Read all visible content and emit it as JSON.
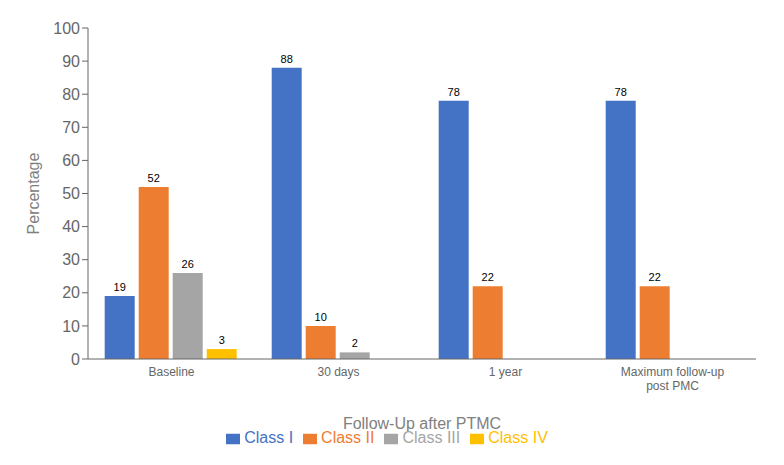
{
  "chart_data": {
    "type": "bar",
    "xlabel": "Follow-Up after PTMC",
    "ylabel": "Percentage",
    "categories": [
      "Baseline",
      "30 days",
      "1 year",
      "Maximum follow-up\npost PMC"
    ],
    "series": [
      {
        "name": "Class I",
        "color": "#4472C4",
        "values": [
          19,
          88,
          78,
          78
        ]
      },
      {
        "name": "Class II",
        "color": "#ED7D31",
        "values": [
          52,
          10,
          22,
          22
        ]
      },
      {
        "name": "Class III",
        "color": "#A5A5A5",
        "values": [
          26,
          2,
          0,
          0
        ]
      },
      {
        "name": "Class IV",
        "color": "#FFC000",
        "values": [
          3,
          0,
          0,
          0
        ]
      }
    ],
    "ylim": [
      0,
      100
    ],
    "yticks": [
      0,
      10,
      20,
      30,
      40,
      50,
      60,
      70,
      80,
      90,
      100
    ],
    "grid": false,
    "legend": "bottom",
    "data_labels": true
  }
}
